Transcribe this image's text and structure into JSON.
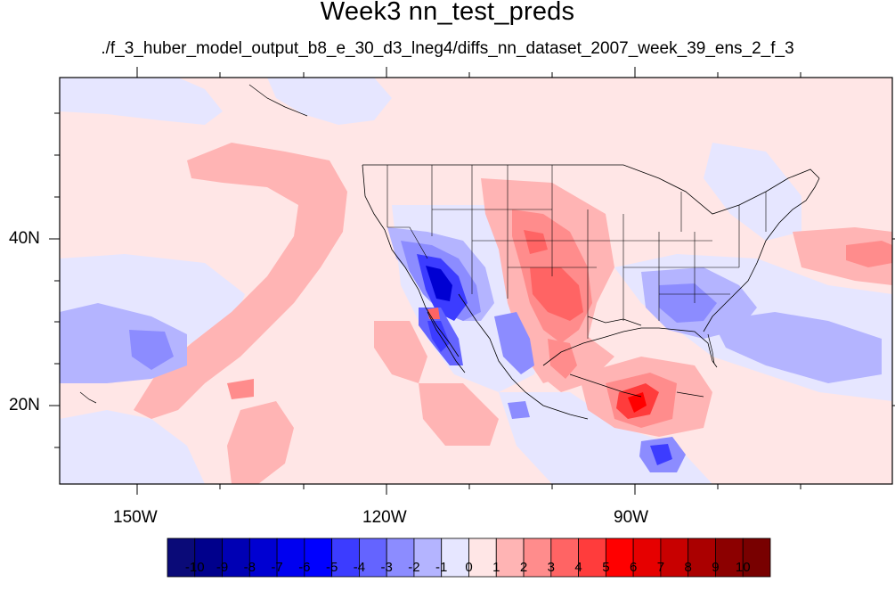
{
  "title": "Week3 nn_test_preds",
  "subtitle": "./f_3_huber_model_output_b8_e_30_d3_lneg4/diffs_nn_dataset_2007_week_39_ens_2_f_3",
  "axes": {
    "lon_labels": [
      "150W",
      "120W",
      "90W"
    ],
    "lat_labels": [
      "40N",
      "20N"
    ],
    "lon_range": [
      -159,
      -61
    ],
    "lat_range": [
      11,
      60
    ]
  },
  "colorbar": {
    "labels": [
      "-10",
      "-9",
      "-8",
      "-7",
      "-6",
      "-5",
      "-4",
      "-3",
      "-2",
      "-1",
      "0",
      "1",
      "2",
      "3",
      "4",
      "5",
      "6",
      "7",
      "8",
      "9",
      "10"
    ],
    "colors": [
      "#0a0a78",
      "#00008c",
      "#0000b4",
      "#0000d2",
      "#0000f0",
      "#0000ff",
      "#3c3cff",
      "#6464ff",
      "#8c8cff",
      "#b4b4ff",
      "#e6e6ff",
      "#ffe6e6",
      "#ffb4b4",
      "#ff8c8c",
      "#ff6464",
      "#ff3c3c",
      "#ff0000",
      "#e60000",
      "#c80000",
      "#aa0000",
      "#8c0000",
      "#780000"
    ]
  },
  "field_regions": [
    {
      "name": "background",
      "level": 1
    },
    {
      "name": "west-pacific-band",
      "level": 2
    },
    {
      "name": "central-plains",
      "level": 3
    },
    {
      "name": "southern-plains-core",
      "level": 4
    },
    {
      "name": "gulf-of-mexico",
      "level": 2
    },
    {
      "name": "caribbean-core",
      "level": 5
    },
    {
      "name": "southwest-us",
      "level": -3
    },
    {
      "name": "southwest-core",
      "level": -6
    },
    {
      "name": "baja",
      "level": -5
    },
    {
      "name": "southeast-us",
      "level": -2
    },
    {
      "name": "atlantic",
      "level": -2
    },
    {
      "name": "central-pacific",
      "level": -2
    },
    {
      "name": "northeast-pacific",
      "level": -1
    },
    {
      "name": "mexico-east",
      "level": -3
    },
    {
      "name": "central-america",
      "level": -4
    },
    {
      "name": "west-atlantic",
      "level": 2
    }
  ]
}
